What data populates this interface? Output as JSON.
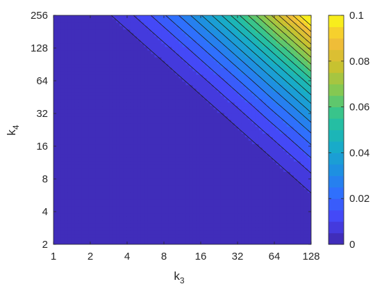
{
  "chart_data": {
    "type": "contour",
    "x": {
      "label_main": "k",
      "label_sub": "3",
      "scale": "log2",
      "ticks": [
        1,
        2,
        4,
        8,
        16,
        32,
        64,
        128
      ],
      "tick_labels": [
        "1",
        "2",
        "4",
        "8",
        "16",
        "32",
        "64",
        "128"
      ],
      "range": [
        1,
        128
      ]
    },
    "y": {
      "label_main": "k",
      "label_sub": "4",
      "scale": "log2",
      "ticks": [
        2,
        4,
        8,
        16,
        32,
        64,
        128,
        256
      ],
      "tick_labels": [
        "2",
        "4",
        "8",
        "16",
        "32",
        "64",
        "128",
        "256"
      ],
      "range": [
        2,
        256
      ]
    },
    "colorbar": {
      "range": [
        0,
        0.1
      ],
      "ticks": [
        0,
        0.02,
        0.04,
        0.06,
        0.08,
        0.1
      ],
      "tick_labels": [
        "0",
        "0.02",
        "0.04",
        "0.06",
        "0.08",
        "0.1"
      ],
      "colormap": "parula",
      "colors": [
        "#3e26a8",
        "#4743f6",
        "#2f6ffe",
        "#1d93df",
        "#17b0c4",
        "#2ac396",
        "#7fc955",
        "#c9c22f",
        "#f4bc39",
        "#f9fb15"
      ]
    },
    "contour_level_count": 20,
    "contour_line_color": "#1a1a1a",
    "model": "z grows with k3 and k4; z = 0.1 at k3 = 128, k4 = 256; contour lines run diagonally from upper-left to lower-right"
  }
}
